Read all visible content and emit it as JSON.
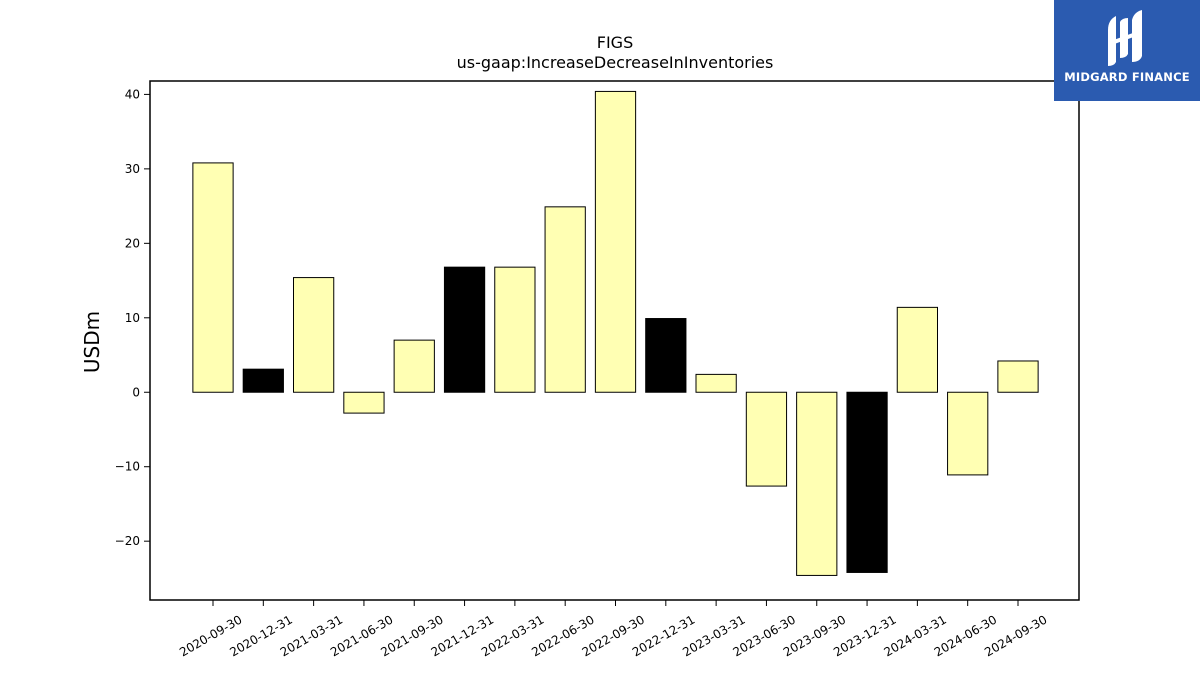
{
  "chart_data": {
    "type": "bar",
    "title": "FIGS",
    "subtitle": "us-gaap:IncreaseDecreaseInInventories",
    "xlabel": "",
    "ylabel": "USDm",
    "ylim": [
      -27.9,
      41.8
    ],
    "yticks": [
      -20,
      -10,
      0,
      10,
      20,
      30,
      40
    ],
    "grid": false,
    "categories": [
      "2020-09-30",
      "2020-12-31",
      "2021-03-31",
      "2021-06-30",
      "2021-09-30",
      "2021-12-31",
      "2022-03-31",
      "2022-06-30",
      "2022-09-30",
      "2022-12-31",
      "2023-03-31",
      "2023-06-30",
      "2023-09-30",
      "2023-12-31",
      "2024-03-31",
      "2024-06-30",
      "2024-09-30"
    ],
    "values": [
      30.8,
      3.1,
      15.4,
      -2.8,
      7.0,
      16.8,
      16.8,
      24.9,
      40.4,
      9.9,
      2.4,
      -12.6,
      -24.6,
      -24.2,
      11.4,
      -11.1,
      4.2
    ],
    "bar_colors": [
      "#ffffb3",
      "#000000",
      "#ffffb3",
      "#ffffb3",
      "#ffffb3",
      "#000000",
      "#ffffb3",
      "#ffffb3",
      "#ffffb3",
      "#000000",
      "#ffffb3",
      "#ffffb3",
      "#ffffb3",
      "#000000",
      "#ffffb3",
      "#ffffb3",
      "#ffffb3"
    ]
  },
  "logo": {
    "text": "MIDGARD FINANCE",
    "background": "#2b5bb0",
    "icon": "midgard-logo-icon"
  }
}
